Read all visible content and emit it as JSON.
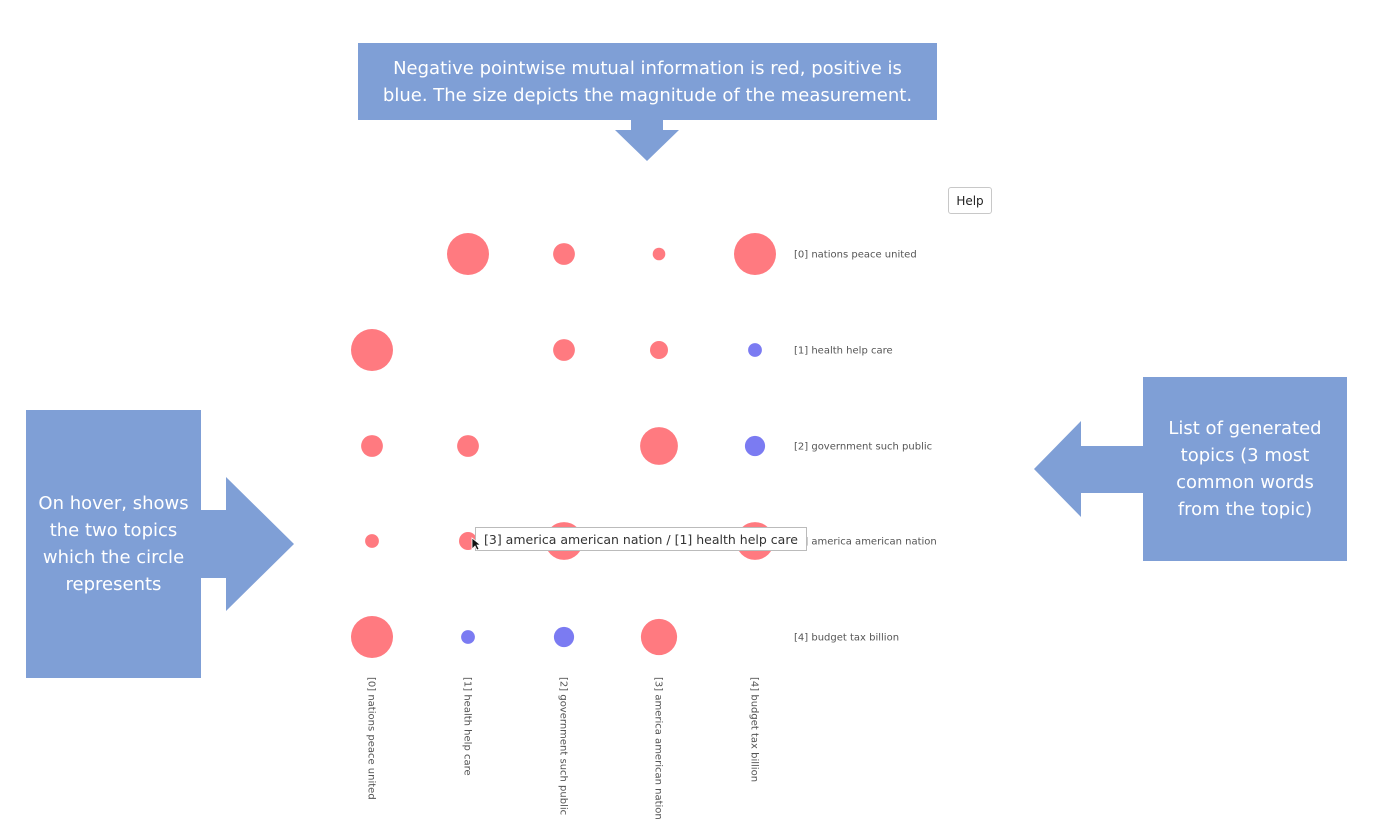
{
  "annotations": {
    "top": "Negative pointwise mutual information is red, positive is blue. The size depicts the magnitude of the measurement.",
    "left": "On hover, shows the two topics which the circle represents",
    "right": "List of generated topics (3 most common words from the topic)"
  },
  "help_label": "Help",
  "tooltip": "[3] america american nation / [1] health help care",
  "colors": {
    "negative": "#ff7a80",
    "positive": "#7b7bf2",
    "callout": "#7f9fd6"
  },
  "chart_data": {
    "type": "scatter",
    "topics": [
      "[0] nations peace united",
      "[1] health help care",
      "[2] government such public",
      "[3] america american nation",
      "[4] budget tax billion"
    ],
    "cells": [
      {
        "row": 0,
        "col": 1,
        "sign": "negative",
        "magnitude": 1.0
      },
      {
        "row": 0,
        "col": 2,
        "sign": "negative",
        "magnitude": 0.52
      },
      {
        "row": 0,
        "col": 3,
        "sign": "negative",
        "magnitude": 0.3
      },
      {
        "row": 0,
        "col": 4,
        "sign": "negative",
        "magnitude": 1.0
      },
      {
        "row": 1,
        "col": 0,
        "sign": "negative",
        "magnitude": 1.0
      },
      {
        "row": 1,
        "col": 2,
        "sign": "negative",
        "magnitude": 0.52
      },
      {
        "row": 1,
        "col": 3,
        "sign": "negative",
        "magnitude": 0.43
      },
      {
        "row": 1,
        "col": 4,
        "sign": "positive",
        "magnitude": 0.33
      },
      {
        "row": 2,
        "col": 0,
        "sign": "negative",
        "magnitude": 0.52
      },
      {
        "row": 2,
        "col": 1,
        "sign": "negative",
        "magnitude": 0.52
      },
      {
        "row": 2,
        "col": 3,
        "sign": "negative",
        "magnitude": 0.9
      },
      {
        "row": 2,
        "col": 4,
        "sign": "positive",
        "magnitude": 0.48
      },
      {
        "row": 3,
        "col": 0,
        "sign": "negative",
        "magnitude": 0.33
      },
      {
        "row": 3,
        "col": 1,
        "sign": "negative",
        "magnitude": 0.43
      },
      {
        "row": 3,
        "col": 2,
        "sign": "negative",
        "magnitude": 0.9
      },
      {
        "row": 3,
        "col": 4,
        "sign": "negative",
        "magnitude": 0.9
      },
      {
        "row": 4,
        "col": 0,
        "sign": "negative",
        "magnitude": 1.0
      },
      {
        "row": 4,
        "col": 1,
        "sign": "positive",
        "magnitude": 0.33
      },
      {
        "row": 4,
        "col": 2,
        "sign": "positive",
        "magnitude": 0.48
      },
      {
        "row": 4,
        "col": 3,
        "sign": "negative",
        "magnitude": 0.86
      }
    ]
  }
}
